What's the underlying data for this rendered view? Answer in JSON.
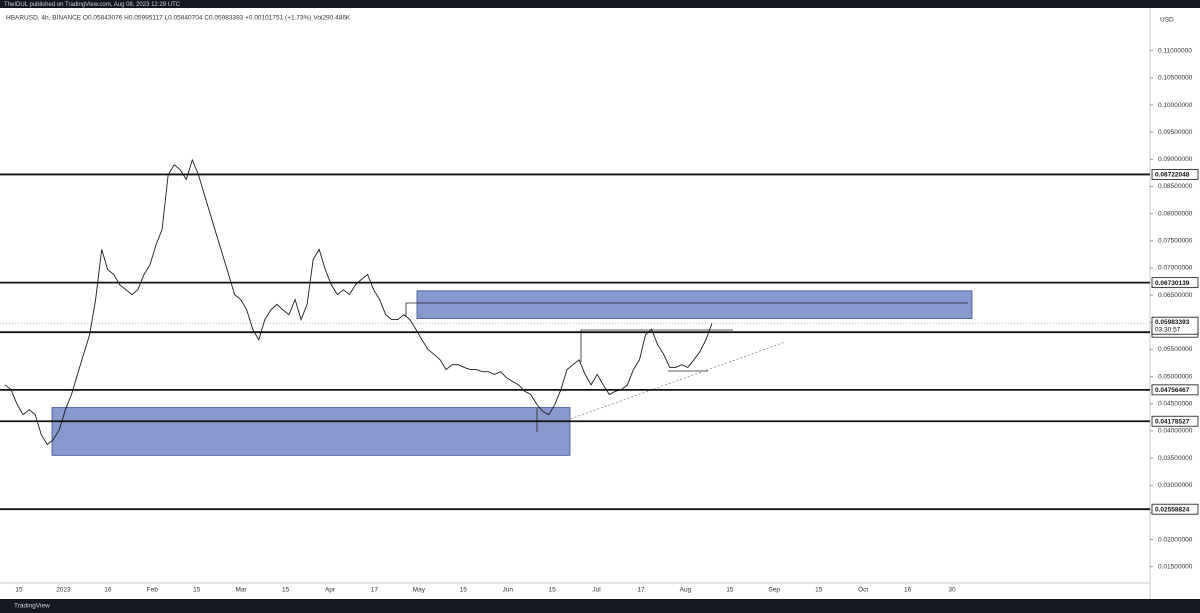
{
  "chart_data": {
    "type": "line",
    "header": "TheIDUL published on TradingView.com, Aug 08, 2023 12:29 UTC",
    "title": "HBARUSD, 4h, BINANCE  O0.05843076  H0.05995117  L0.05840704  C0.05983393  +0.00101751 (+1.73%)  Vol290.486K",
    "currency": "USD",
    "footer": "TradingView",
    "color": "#1a1a1a",
    "values": [
      0.0485,
      0.0476,
      0.0449,
      0.043,
      0.0439,
      0.043,
      0.0393,
      0.0375,
      0.0384,
      0.0403,
      0.0439,
      0.0467,
      0.0504,
      0.0541,
      0.0577,
      0.0642,
      0.0734,
      0.0697,
      0.0688,
      0.0669,
      0.066,
      0.0651,
      0.066,
      0.0688,
      0.0706,
      0.0743,
      0.0771,
      0.0872,
      0.089,
      0.0881,
      0.0863,
      0.0899,
      0.0872,
      0.0835,
      0.0798,
      0.0761,
      0.0725,
      0.0688,
      0.0651,
      0.0642,
      0.0623,
      0.0587,
      0.0568,
      0.0605,
      0.0623,
      0.0633,
      0.0623,
      0.0614,
      0.0642,
      0.0605,
      0.0633,
      0.0716,
      0.0734,
      0.0697,
      0.0669,
      0.0651,
      0.066,
      0.0651,
      0.0669,
      0.0679,
      0.0688,
      0.066,
      0.0642,
      0.0614,
      0.0605,
      0.0605,
      0.0614,
      0.0605,
      0.0587,
      0.0568,
      0.055,
      0.0541,
      0.0531,
      0.0513,
      0.0522,
      0.0522,
      0.0517,
      0.0513,
      0.0513,
      0.0509,
      0.0509,
      0.0504,
      0.0509,
      0.0498,
      0.0491,
      0.0485,
      0.0473,
      0.0467,
      0.0449,
      0.0436,
      0.043,
      0.0449,
      0.0476,
      0.0513,
      0.0522,
      0.0531,
      0.0504,
      0.0485,
      0.0504,
      0.0485,
      0.0467,
      0.0473,
      0.0476,
      0.0485,
      0.0513,
      0.0531,
      0.0577,
      0.0587,
      0.0559,
      0.0541,
      0.0517,
      0.0517,
      0.0522,
      0.0517,
      0.0531,
      0.0546,
      0.0568,
      0.0598
    ],
    "ylim": [
      0.012,
      0.1175
    ],
    "yticks": [
      {
        "value": 0.015,
        "label": "0.01500000"
      },
      {
        "value": 0.02,
        "label": "0.02000000"
      },
      {
        "value": 0.025,
        "label": "0.02500000"
      },
      {
        "value": 0.03,
        "label": "0.03000000"
      },
      {
        "value": 0.035,
        "label": "0.03500000"
      },
      {
        "value": 0.04,
        "label": "0.04000000"
      },
      {
        "value": 0.045,
        "label": "0.04500000"
      },
      {
        "value": 0.05,
        "label": "0.05000000"
      },
      {
        "value": 0.055,
        "label": "0.05500000"
      },
      {
        "value": 0.06,
        "label": "0.06000000"
      },
      {
        "value": 0.065,
        "label": "0.06500000"
      },
      {
        "value": 0.07,
        "label": "0.07000000"
      },
      {
        "value": 0.075,
        "label": "0.07500000"
      },
      {
        "value": 0.08,
        "label": "0.08000000"
      },
      {
        "value": 0.085,
        "label": "0.08500000"
      },
      {
        "value": 0.09,
        "label": "0.09000000"
      },
      {
        "value": 0.095,
        "label": "0.09500000"
      },
      {
        "value": 0.1,
        "label": "0.10000000"
      },
      {
        "value": 0.105,
        "label": "0.10500000"
      },
      {
        "value": 0.11,
        "label": "0.11000000"
      }
    ],
    "x_axis_labels": [
      "15",
      "2023",
      "16",
      "Feb",
      "15",
      "Mar",
      "15",
      "Apr",
      "17",
      "May",
      "15",
      "Jun",
      "15",
      "Jul",
      "17",
      "Aug",
      "15",
      "Sep",
      "15",
      "Oct",
      "16",
      "30"
    ],
    "levels": [
      0.08722048,
      0.06730139,
      0.05817714,
      0.04756467,
      0.04178527,
      0.02558824
    ],
    "last_price": 0.05983393,
    "countdown": "03:30:57",
    "zones": [
      {
        "top": 0.0658,
        "bottom": 0.0607
      },
      {
        "top": 0.0443,
        "bottom": 0.0355
      }
    ]
  }
}
